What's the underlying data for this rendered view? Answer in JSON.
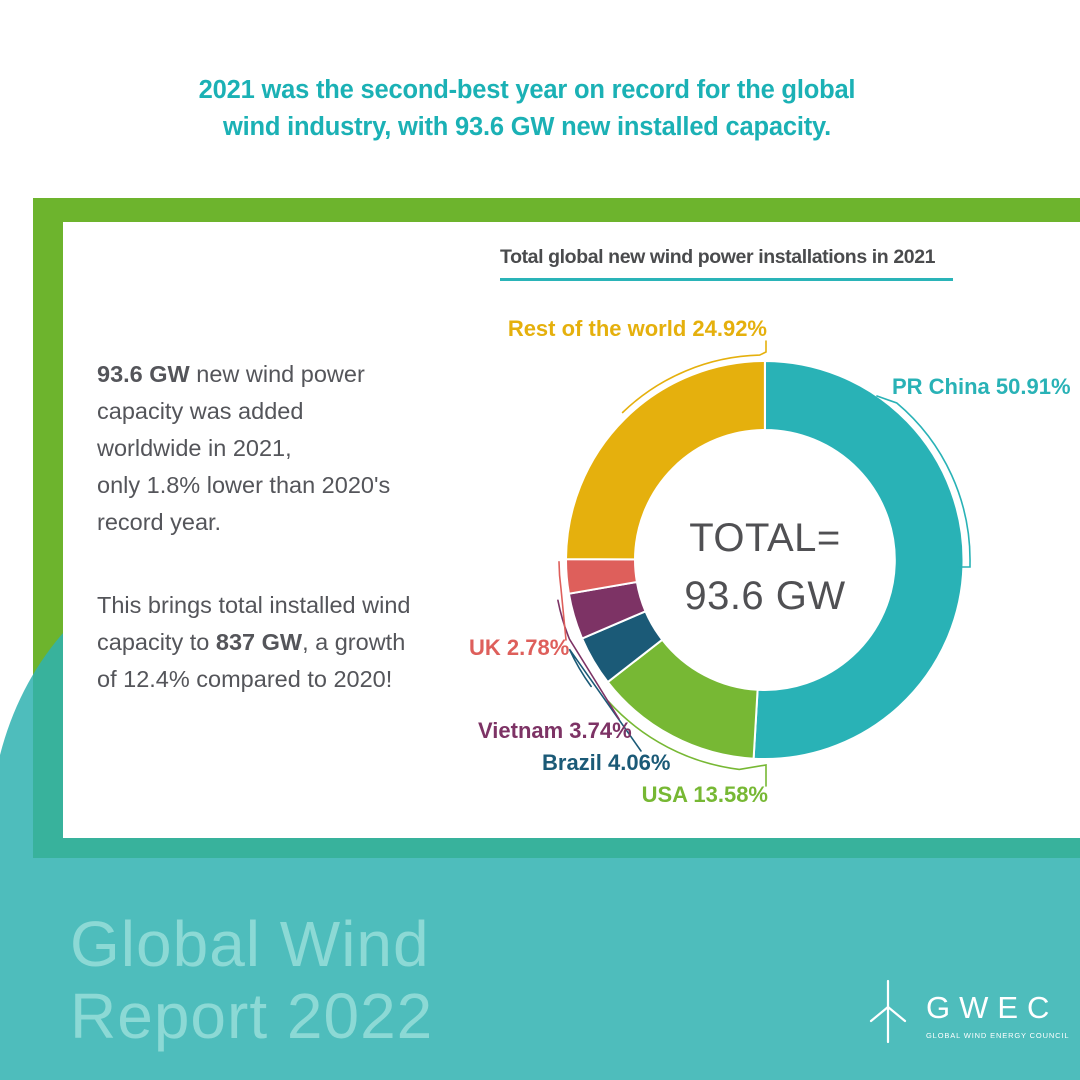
{
  "headline": {
    "text": "2021 was the second-best year on record for the global\nwind industry, with 93.6 GW new installed capacity."
  },
  "card": {
    "paragraphs": [
      {
        "segments": [
          {
            "text": "93.6 GW",
            "bold": true
          },
          {
            "text": " new wind power\ncapacity was added\nworldwide in 2021,\nonly 1.8% lower than 2020's\nrecord year.",
            "bold": false
          }
        ]
      },
      {
        "segments": [
          {
            "text": "This brings total installed wind\ncapacity to ",
            "bold": false
          },
          {
            "text": "837 GW",
            "bold": true
          },
          {
            "text": ", a growth\nof 12.4% compared to 2020!",
            "bold": false
          }
        ]
      }
    ]
  },
  "chart_data": {
    "type": "pie",
    "subtype": "donut",
    "title": "Total global new wind power installations in 2021",
    "center_label": "TOTAL=\n93.6 GW",
    "total": "93.6 GW",
    "units": "percent",
    "start_angle_deg": 0,
    "direction": "clockwise",
    "legend_position": "callout-labels",
    "series": [
      {
        "name": "PR China",
        "value": 50.91,
        "label": "PR China 50.91%",
        "color": "#29b2b6"
      },
      {
        "name": "USA",
        "value": 13.58,
        "label": "USA 13.58%",
        "color": "#77b834"
      },
      {
        "name": "Brazil",
        "value": 4.06,
        "label": "Brazil 4.06%",
        "color": "#1b5a77"
      },
      {
        "name": "Vietnam",
        "value": 3.74,
        "label": "Vietnam 3.74%",
        "color": "#7d3365"
      },
      {
        "name": "UK",
        "value": 2.78,
        "label": "UK 2.78%",
        "color": "#de5f5b"
      },
      {
        "name": "Rest of the world",
        "value": 24.92,
        "label": "Rest of the world 24.92%",
        "color": "#e5b00d"
      }
    ]
  },
  "band": {
    "title": "Global Wind\nReport 2022"
  },
  "brand": {
    "wordmark": "GWEC",
    "tagline": "GLOBAL WIND ENERGY COUNCIL"
  },
  "colors": {
    "headline_teal": "#1bb1b5",
    "frame_green": "#6db42d",
    "band_teal": "#2fb2b0",
    "strip_teal_green": "#38b29c",
    "band_text": "#8cd9d5",
    "underline_teal": "#2ab4b8",
    "chart_title_dark": "#4a4b4d",
    "body_text_dark": "#54555a",
    "center_text_dark": "#505053",
    "white": "#ffffff"
  }
}
